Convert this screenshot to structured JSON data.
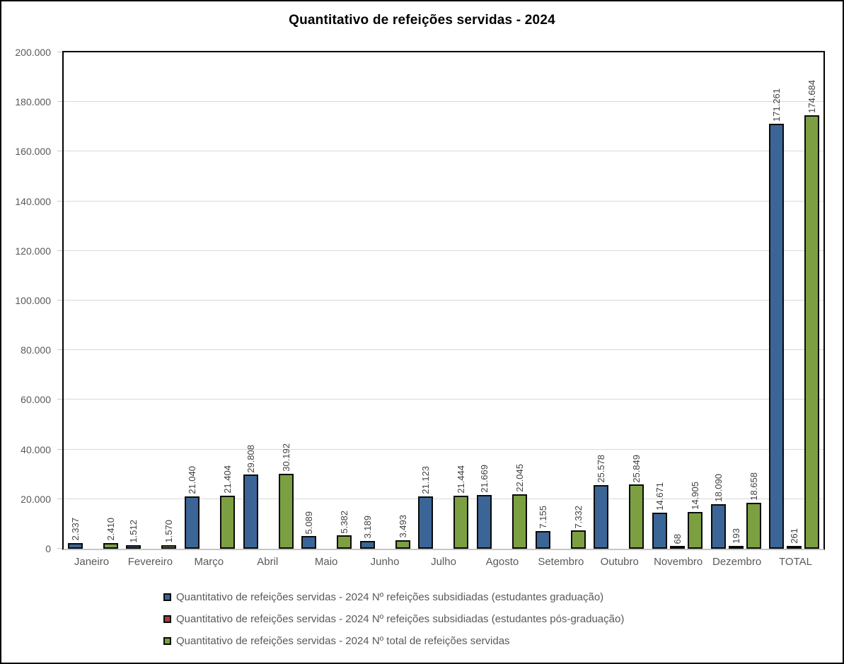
{
  "chart_data": {
    "type": "bar",
    "title": "Quantitativo de refeições servidas - 2024",
    "categories": [
      "Janeiro",
      "Fevereiro",
      "Março",
      "Abril",
      "Maio",
      "Junho",
      "Julho",
      "Agosto",
      "Setembro",
      "Outubro",
      "Novembro",
      "Dezembro",
      "TOTAL"
    ],
    "series": [
      {
        "name": "Quantitativo de refeições servidas - 2024 Nº refeições subsidiadas (estudantes graduação)",
        "color": "#3b6596",
        "values": [
          2337,
          1512,
          21040,
          29808,
          5089,
          3189,
          21123,
          21669,
          7155,
          25578,
          14671,
          18090,
          171261
        ]
      },
      {
        "name": "Quantitativo de refeições servidas - 2024 Nº refeições subsidiadas (estudantes pós-graduação)",
        "color": "#a33e38",
        "values": [
          0,
          0,
          0,
          0,
          0,
          0,
          0,
          0,
          0,
          0,
          68,
          193,
          261
        ]
      },
      {
        "name": "Quantitativo de refeições servidas - 2024 Nº total de refeições servidas",
        "color": "#7ca041",
        "values": [
          2410,
          1570,
          21404,
          30192,
          5382,
          3493,
          21444,
          22045,
          7332,
          25849,
          14905,
          18658,
          174684
        ]
      }
    ],
    "xlabel": "",
    "ylabel": "",
    "ylim": [
      0,
      200000
    ],
    "ytick_interval": 20000,
    "ytick_labels": [
      "0",
      "20.000",
      "40.000",
      "60.000",
      "80.000",
      "100.000",
      "120.000",
      "140.000",
      "160.000",
      "180.000",
      "200.000"
    ],
    "grid": true,
    "legend_position": "bottom-left",
    "data_labels": "rotated-vertical, thousands separated by dots, shown only for non-zero values",
    "colors": {
      "bar_border": "#0a0a0a",
      "plot_border": "#000000",
      "gridline": "#d9d9d9",
      "axis_line": "#c6c6c6",
      "axis_text": "#595959",
      "data_label_text": "#3f3f3f",
      "title_text": "#000000"
    }
  }
}
